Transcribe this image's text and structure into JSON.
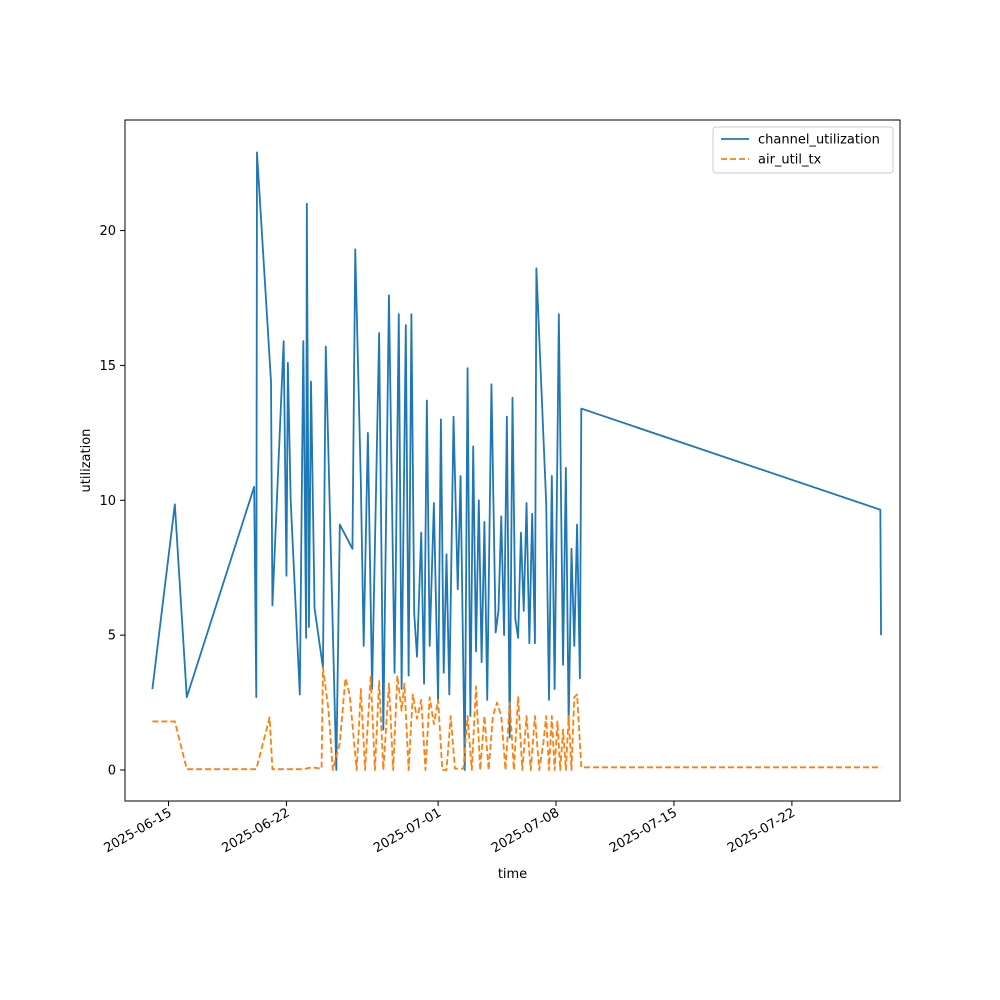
{
  "chart_data": {
    "type": "line",
    "title": "",
    "xlabel": "time",
    "ylabel": "utilization",
    "x_type": "date",
    "xlim": [
      "2025-06-12T10:00",
      "2025-07-28T10:00"
    ],
    "ylim": [
      -1.15,
      24.1
    ],
    "x_ticks": [
      "2025-06-15",
      "2025-06-22",
      "2025-07-01",
      "2025-07-08",
      "2025-07-15",
      "2025-07-22"
    ],
    "y_ticks": [
      0,
      5,
      10,
      15,
      20
    ],
    "grid": false,
    "legend_position": "top-right",
    "series": [
      {
        "name": "channel_utilization",
        "color": "#1f77b4",
        "style": "solid",
        "points": [
          [
            "2025-06-14T01:00",
            3.0
          ],
          [
            "2025-06-15T09:00",
            9.85
          ],
          [
            "2025-06-16T02:00",
            2.7
          ],
          [
            "2025-06-20T02:00",
            10.5
          ],
          [
            "2025-06-20T05:00",
            2.7
          ],
          [
            "2025-06-20T06:00",
            22.9
          ],
          [
            "2025-06-21T02:00",
            14.4
          ],
          [
            "2025-06-21T04:00",
            6.1
          ],
          [
            "2025-06-21T20:00",
            15.9
          ],
          [
            "2025-06-22T00:00",
            7.2
          ],
          [
            "2025-06-22T02:00",
            15.1
          ],
          [
            "2025-06-22T06:00",
            10.0
          ],
          [
            "2025-06-22T19:00",
            2.8
          ],
          [
            "2025-06-23T00:00",
            15.9
          ],
          [
            "2025-06-23T04:00",
            4.9
          ],
          [
            "2025-06-23T05:00",
            21.0
          ],
          [
            "2025-06-23T08:00",
            5.3
          ],
          [
            "2025-06-23T11:00",
            14.4
          ],
          [
            "2025-06-23T16:00",
            6.0
          ],
          [
            "2025-06-24T04:00",
            3.8
          ],
          [
            "2025-06-24T08:00",
            15.7
          ],
          [
            "2025-06-24T23:00",
            0.0
          ],
          [
            "2025-06-25T04:00",
            9.1
          ],
          [
            "2025-06-25T22:00",
            8.2
          ],
          [
            "2025-06-26T02:00",
            19.3
          ],
          [
            "2025-06-26T10:00",
            10.6
          ],
          [
            "2025-06-26T14:00",
            4.6
          ],
          [
            "2025-06-26T20:00",
            12.5
          ],
          [
            "2025-06-27T02:00",
            3.0
          ],
          [
            "2025-06-27T12:00",
            16.2
          ],
          [
            "2025-06-27T18:00",
            1.5
          ],
          [
            "2025-06-28T02:00",
            17.6
          ],
          [
            "2025-06-28T10:00",
            3.6
          ],
          [
            "2025-06-28T16:00",
            16.9
          ],
          [
            "2025-06-28T20:00",
            3.0
          ],
          [
            "2025-06-29T02:00",
            16.5
          ],
          [
            "2025-06-29T06:00",
            3.5
          ],
          [
            "2025-06-29T10:00",
            16.9
          ],
          [
            "2025-06-29T14:00",
            5.8
          ],
          [
            "2025-06-29T18:00",
            4.2
          ],
          [
            "2025-06-30T00:00",
            8.8
          ],
          [
            "2025-06-30T04:00",
            3.2
          ],
          [
            "2025-06-30T08:00",
            13.7
          ],
          [
            "2025-06-30T12:00",
            4.6
          ],
          [
            "2025-06-30T18:00",
            9.9
          ],
          [
            "2025-07-01T00:00",
            2.5
          ],
          [
            "2025-07-01T04:00",
            13.0
          ],
          [
            "2025-07-01T08:00",
            3.6
          ],
          [
            "2025-07-01T12:00",
            8.0
          ],
          [
            "2025-07-01T16:00",
            2.8
          ],
          [
            "2025-07-01T22:00",
            13.1
          ],
          [
            "2025-07-02T04:00",
            6.7
          ],
          [
            "2025-07-02T08:00",
            10.9
          ],
          [
            "2025-07-02T14:00",
            0.0
          ],
          [
            "2025-07-02T18:00",
            14.9
          ],
          [
            "2025-07-02T22:00",
            2.0
          ],
          [
            "2025-07-03T02:00",
            12.0
          ],
          [
            "2025-07-03T06:00",
            4.4
          ],
          [
            "2025-07-03T10:00",
            10.0
          ],
          [
            "2025-07-03T14:00",
            4.0
          ],
          [
            "2025-07-03T18:00",
            9.2
          ],
          [
            "2025-07-03T22:00",
            2.6
          ],
          [
            "2025-07-04T04:00",
            14.3
          ],
          [
            "2025-07-04T10:00",
            5.1
          ],
          [
            "2025-07-04T14:00",
            5.9
          ],
          [
            "2025-07-04T18:00",
            9.4
          ],
          [
            "2025-07-04T22:00",
            5.0
          ],
          [
            "2025-07-05T02:00",
            13.1
          ],
          [
            "2025-07-05T06:00",
            1.2
          ],
          [
            "2025-07-05T10:00",
            13.8
          ],
          [
            "2025-07-05T14:00",
            5.6
          ],
          [
            "2025-07-05T18:00",
            4.9
          ],
          [
            "2025-07-05T22:00",
            8.8
          ],
          [
            "2025-07-06T02:00",
            5.9
          ],
          [
            "2025-07-06T06:00",
            9.9
          ],
          [
            "2025-07-06T10:00",
            4.7
          ],
          [
            "2025-07-06T14:00",
            9.5
          ],
          [
            "2025-07-06T18:00",
            4.7
          ],
          [
            "2025-07-06T20:00",
            18.6
          ],
          [
            "2025-07-07T10:00",
            9.9
          ],
          [
            "2025-07-07T14:00",
            2.6
          ],
          [
            "2025-07-07T18:00",
            10.9
          ],
          [
            "2025-07-07T22:00",
            3.0
          ],
          [
            "2025-07-08T02:00",
            11.9
          ],
          [
            "2025-07-08T04:00",
            16.9
          ],
          [
            "2025-07-08T10:00",
            3.9
          ],
          [
            "2025-07-08T14:00",
            11.2
          ],
          [
            "2025-07-08T18:00",
            1.7
          ],
          [
            "2025-07-08T22:00",
            8.2
          ],
          [
            "2025-07-09T02:00",
            4.6
          ],
          [
            "2025-07-09T06:00",
            9.1
          ],
          [
            "2025-07-09T10:00",
            3.4
          ],
          [
            "2025-07-09T12:00",
            13.4
          ],
          [
            "2025-07-27T06:00",
            9.65
          ],
          [
            "2025-07-27T07:00",
            5.0
          ]
        ]
      },
      {
        "name": "air_util_tx",
        "color": "#ff7f0e",
        "style": "dashed",
        "points": [
          [
            "2025-06-14T01:00",
            1.8
          ],
          [
            "2025-06-15T09:00",
            1.8
          ],
          [
            "2025-06-16T02:00",
            0.03
          ],
          [
            "2025-06-20T02:00",
            0.03
          ],
          [
            "2025-06-20T05:00",
            0.03
          ],
          [
            "2025-06-21T00:00",
            1.95
          ],
          [
            "2025-06-21T04:00",
            0.03
          ],
          [
            "2025-06-23T00:00",
            0.03
          ],
          [
            "2025-06-23T12:00",
            0.1
          ],
          [
            "2025-06-24T02:00",
            0.05
          ],
          [
            "2025-06-24T04:00",
            3.8
          ],
          [
            "2025-06-24T12:00",
            2.2
          ],
          [
            "2025-06-24T18:00",
            0.0
          ],
          [
            "2025-06-25T04:00",
            1.0
          ],
          [
            "2025-06-25T12:00",
            3.4
          ],
          [
            "2025-06-25T18:00",
            2.8
          ],
          [
            "2025-06-26T04:00",
            0.0
          ],
          [
            "2025-06-26T10:00",
            3.0
          ],
          [
            "2025-06-26T16:00",
            0.0
          ],
          [
            "2025-06-27T00:00",
            3.5
          ],
          [
            "2025-06-27T06:00",
            0.0
          ],
          [
            "2025-06-27T12:00",
            3.3
          ],
          [
            "2025-06-27T18:00",
            0.0
          ],
          [
            "2025-06-28T02:00",
            3.2
          ],
          [
            "2025-06-28T08:00",
            0.0
          ],
          [
            "2025-06-28T14:00",
            3.5
          ],
          [
            "2025-06-28T20:00",
            2.2
          ],
          [
            "2025-06-29T00:00",
            3.2
          ],
          [
            "2025-06-29T06:00",
            0.0
          ],
          [
            "2025-06-29T12:00",
            2.8
          ],
          [
            "2025-06-29T18:00",
            1.9
          ],
          [
            "2025-06-30T00:00",
            2.6
          ],
          [
            "2025-06-30T06:00",
            0.0
          ],
          [
            "2025-06-30T12:00",
            2.7
          ],
          [
            "2025-06-30T18:00",
            1.7
          ],
          [
            "2025-07-01T00:00",
            2.6
          ],
          [
            "2025-07-01T06:00",
            0.0
          ],
          [
            "2025-07-01T12:00",
            0.0
          ],
          [
            "2025-07-01T18:00",
            2.0
          ],
          [
            "2025-07-02T00:00",
            0.05
          ],
          [
            "2025-07-02T12:00",
            0.05
          ],
          [
            "2025-07-02T18:00",
            2.0
          ],
          [
            "2025-07-03T00:00",
            0.0
          ],
          [
            "2025-07-03T06:00",
            3.1
          ],
          [
            "2025-07-03T12:00",
            0.0
          ],
          [
            "2025-07-03T18:00",
            2.0
          ],
          [
            "2025-07-04T00:00",
            0.0
          ],
          [
            "2025-07-04T06:00",
            2.0
          ],
          [
            "2025-07-04T12:00",
            2.5
          ],
          [
            "2025-07-04T18:00",
            2.0
          ],
          [
            "2025-07-05T00:00",
            0.0
          ],
          [
            "2025-07-05T06:00",
            2.5
          ],
          [
            "2025-07-05T12:00",
            0.0
          ],
          [
            "2025-07-05T18:00",
            2.7
          ],
          [
            "2025-07-06T00:00",
            0.0
          ],
          [
            "2025-07-06T06:00",
            2.0
          ],
          [
            "2025-07-06T12:00",
            0.0
          ],
          [
            "2025-07-06T18:00",
            2.0
          ],
          [
            "2025-07-07T00:00",
            0.0
          ],
          [
            "2025-07-07T06:00",
            1.0
          ],
          [
            "2025-07-07T10:00",
            2.0
          ],
          [
            "2025-07-07T14:00",
            0.0
          ],
          [
            "2025-07-07T18:00",
            2.0
          ],
          [
            "2025-07-07T22:00",
            0.0
          ],
          [
            "2025-07-08T02:00",
            1.8
          ],
          [
            "2025-07-08T06:00",
            0.0
          ],
          [
            "2025-07-08T10:00",
            1.5
          ],
          [
            "2025-07-08T14:00",
            0.0
          ],
          [
            "2025-07-08T18:00",
            2.0
          ],
          [
            "2025-07-08T22:00",
            0.0
          ],
          [
            "2025-07-09T02:00",
            2.7
          ],
          [
            "2025-07-09T06:00",
            2.8
          ],
          [
            "2025-07-09T12:00",
            0.1
          ],
          [
            "2025-07-27T06:00",
            0.1
          ],
          [
            "2025-07-27T07:00",
            0.08
          ]
        ]
      }
    ]
  }
}
